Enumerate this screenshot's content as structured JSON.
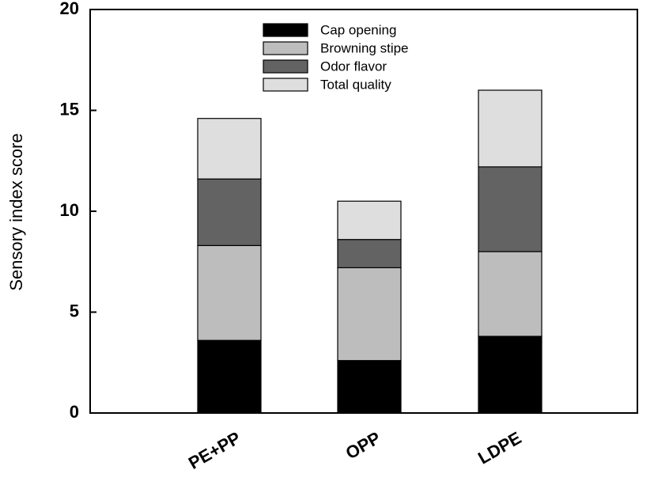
{
  "chart_data": {
    "type": "bar",
    "stacked": true,
    "title": "",
    "xlabel": "",
    "ylabel": "Sensory index score",
    "ylim": [
      0,
      20
    ],
    "yticks": [
      0,
      5,
      10,
      15,
      20
    ],
    "grid": false,
    "legend_position": "top-center",
    "categories": [
      "PE+PP",
      "OPP",
      "LDPE"
    ],
    "series": [
      {
        "name": "Cap opening",
        "color": "#000000",
        "values": [
          3.6,
          2.6,
          3.8
        ]
      },
      {
        "name": "Browning stipe",
        "color": "#bdbdbd",
        "values": [
          4.7,
          4.6,
          4.2
        ]
      },
      {
        "name": "Odor flavor",
        "color": "#636363",
        "values": [
          3.3,
          1.4,
          4.2
        ]
      },
      {
        "name": "Total quality",
        "color": "#dedede",
        "values": [
          3.0,
          1.9,
          3.8
        ]
      }
    ]
  }
}
